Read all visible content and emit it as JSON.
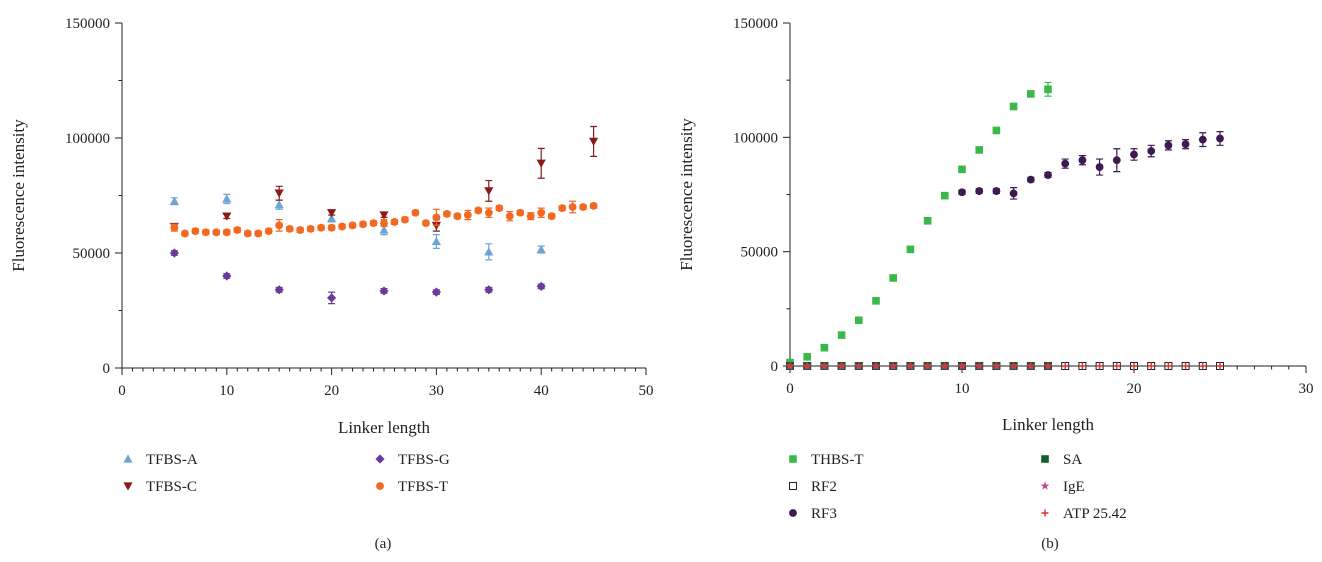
{
  "chart_data": [
    {
      "type": "scatter",
      "panel_label": "(a)",
      "title": "",
      "xlabel": "Linker length",
      "ylabel": "Fluorescence intensity",
      "xlim": [
        0,
        50
      ],
      "ylim": [
        0,
        150000
      ],
      "x_ticks": [
        "0",
        "10",
        "20",
        "30",
        "40",
        "50"
      ],
      "y_ticks": [
        "0",
        "50000",
        "100000",
        "150000"
      ],
      "legend_columns": 2,
      "series": [
        {
          "name": "TFBS-A",
          "marker": "triangle-up",
          "color": "#6fa3d6",
          "x": [
            5,
            10,
            15,
            20,
            25,
            30,
            35,
            40
          ],
          "y": [
            72500,
            73500,
            71000,
            65000,
            60000,
            55000,
            50500,
            51500
          ],
          "err": [
            1500,
            2000,
            2000,
            1500,
            2000,
            3000,
            3500,
            1500
          ]
        },
        {
          "name": "TFBS-C",
          "marker": "triangle-down",
          "color": "#8b1a1a",
          "x": [
            5,
            10,
            15,
            20,
            25,
            30,
            35,
            40,
            45
          ],
          "y": [
            61500,
            66000,
            76000,
            67500,
            66500,
            62000,
            77000,
            89000,
            98500
          ],
          "err": [
            1000,
            1000,
            3000,
            1000,
            1000,
            2500,
            4500,
            6500,
            6500
          ]
        },
        {
          "name": "TFBS-G",
          "marker": "diamond",
          "color": "#6b3a9c",
          "x": [
            5,
            10,
            15,
            20,
            25,
            30,
            35,
            40
          ],
          "y": [
            50000,
            40000,
            34000,
            30500,
            33500,
            33000,
            34000,
            35500
          ],
          "err": [
            1000,
            1000,
            1000,
            2500,
            1000,
            1000,
            1000,
            1000
          ]
        },
        {
          "name": "TFBS-T",
          "marker": "circle",
          "color": "#f26a21",
          "x": [
            5,
            6,
            7,
            8,
            9,
            10,
            11,
            12,
            13,
            14,
            15,
            16,
            17,
            18,
            19,
            20,
            21,
            22,
            23,
            24,
            25,
            26,
            27,
            28,
            29,
            30,
            31,
            32,
            33,
            34,
            35,
            36,
            37,
            38,
            39,
            40,
            41,
            42,
            43,
            44,
            45
          ],
          "y": [
            61000,
            58500,
            59500,
            59000,
            59000,
            59000,
            60000,
            58500,
            58500,
            59500,
            62000,
            60500,
            60000,
            60500,
            61000,
            61000,
            61500,
            62000,
            62500,
            63000,
            63000,
            63500,
            64500,
            67500,
            63000,
            65500,
            67000,
            66000,
            66500,
            68500,
            67500,
            69500,
            66000,
            67500,
            66000,
            67500,
            66000,
            69500,
            70000,
            70000,
            70500
          ],
          "err": [
            1500,
            1000,
            1000,
            1000,
            1000,
            1000,
            1000,
            1000,
            1000,
            1000,
            2500,
            1000,
            1000,
            1000,
            1000,
            1000,
            1000,
            1000,
            1000,
            1000,
            1500,
            1000,
            1000,
            1000,
            1000,
            3500,
            1000,
            1000,
            2000,
            1000,
            2000,
            1000,
            2000,
            1000,
            1500,
            2000,
            1000,
            1000,
            2500,
            1000,
            1000
          ]
        }
      ]
    },
    {
      "type": "scatter",
      "panel_label": "(b)",
      "title": "",
      "xlabel": "Linker length",
      "ylabel": "Fluorescence intensity",
      "xlim": [
        0,
        30
      ],
      "ylim": [
        0,
        150000
      ],
      "x_ticks": [
        "0",
        "10",
        "20",
        "30"
      ],
      "y_ticks": [
        "0",
        "50000",
        "100000",
        "150000"
      ],
      "legend_columns": 2,
      "series": [
        {
          "name": "THBS-T",
          "marker": "square",
          "color": "#3cb84a",
          "x": [
            0,
            1,
            2,
            3,
            4,
            5,
            6,
            7,
            8,
            9,
            10,
            11,
            12,
            13,
            14,
            15
          ],
          "y": [
            1500,
            4000,
            8000,
            13500,
            20000,
            28500,
            38500,
            51000,
            63500,
            74500,
            86000,
            94500,
            103000,
            113500,
            119000,
            121000
          ],
          "err": [
            0,
            0,
            0,
            0,
            0,
            0,
            0,
            0,
            0,
            0,
            0,
            0,
            0,
            0,
            0,
            3000
          ]
        },
        {
          "name": "RF2",
          "marker": "square-open",
          "color": "#222222",
          "x": [
            0,
            1,
            2,
            3,
            4,
            5,
            6,
            7,
            8,
            9,
            10,
            11,
            12,
            13,
            14,
            15,
            16,
            17,
            18,
            19,
            20,
            21,
            22,
            23,
            24,
            25
          ],
          "y": [
            0,
            0,
            0,
            0,
            0,
            0,
            0,
            0,
            0,
            0,
            0,
            0,
            0,
            0,
            0,
            0,
            0,
            0,
            0,
            0,
            0,
            0,
            0,
            0,
            0,
            0
          ],
          "err": []
        },
        {
          "name": "RF3",
          "marker": "circle",
          "color": "#3d1a4f",
          "x": [
            10,
            11,
            12,
            13,
            14,
            15,
            16,
            17,
            18,
            19,
            20,
            21,
            22,
            23,
            24,
            25
          ],
          "y": [
            76000,
            76500,
            76500,
            75500,
            81500,
            83500,
            88500,
            90000,
            87000,
            90000,
            92500,
            94000,
            96500,
            97000,
            99000,
            99500
          ],
          "err": [
            1000,
            1000,
            1000,
            2500,
            1000,
            1000,
            2000,
            2000,
            3500,
            5000,
            2500,
            2500,
            2000,
            2000,
            3000,
            3000
          ]
        },
        {
          "name": "SA",
          "marker": "square",
          "color": "#1c5c2a",
          "x": [
            0,
            1,
            2,
            3,
            4,
            5,
            6,
            7,
            8,
            9,
            10,
            11,
            12,
            13,
            14,
            15
          ],
          "y": [
            0,
            0,
            0,
            0,
            0,
            0,
            0,
            0,
            0,
            0,
            0,
            0,
            0,
            0,
            0,
            0
          ],
          "err": []
        },
        {
          "name": "IgE",
          "marker": "star",
          "color": "#c04a9a",
          "x": [
            0,
            1,
            2,
            3,
            4,
            5,
            6,
            7,
            8,
            9,
            10,
            11,
            12,
            13,
            14,
            15
          ],
          "y": [
            0,
            0,
            0,
            0,
            0,
            0,
            0,
            0,
            0,
            0,
            0,
            0,
            0,
            0,
            0,
            0
          ],
          "err": []
        },
        {
          "name": "ATP 25.42",
          "marker": "plus",
          "color": "#e0302a",
          "x": [
            0,
            1,
            2,
            3,
            4,
            5,
            6,
            7,
            8,
            9,
            10,
            11,
            12,
            13,
            14,
            15,
            16,
            17,
            18,
            19,
            20,
            21,
            22,
            23,
            24,
            25
          ],
          "y": [
            0,
            0,
            0,
            0,
            0,
            0,
            0,
            0,
            0,
            0,
            0,
            0,
            0,
            0,
            0,
            0,
            0,
            0,
            0,
            0,
            0,
            0,
            0,
            0,
            0,
            0
          ],
          "err": []
        }
      ]
    }
  ]
}
